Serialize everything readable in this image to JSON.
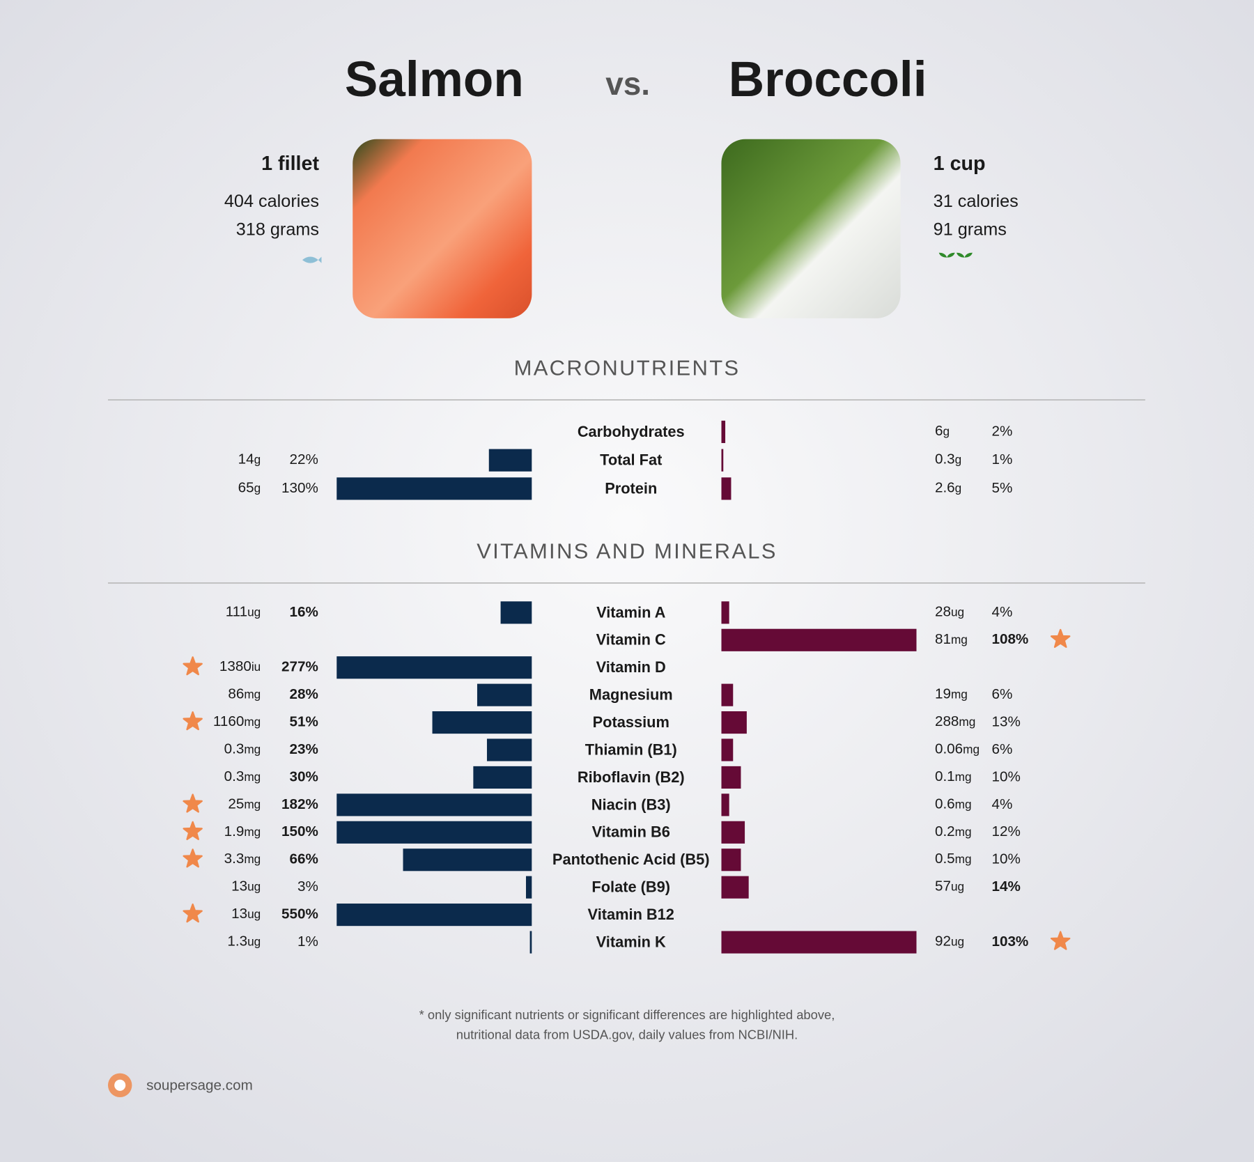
{
  "header": {
    "left": "Salmon",
    "vs": "vs.",
    "right": "Broccoli"
  },
  "colors": {
    "left": "#0b2a4c",
    "right": "#650a36",
    "star": "#f0884a"
  },
  "foods": [
    {
      "serving": "1 fillet",
      "calories": "404 calories",
      "grams": "318 grams"
    },
    {
      "serving": "1 cup",
      "calories": "31 calories",
      "grams": "91 grams"
    }
  ],
  "xlim": [
    0,
    100
  ],
  "sections": [
    {
      "title": "MACRONUTRIENTS",
      "rows": [
        {
          "nutrient": "Carbohydrates",
          "left": null,
          "right": {
            "amount": 6,
            "unit": "g",
            "pct": 2,
            "pct_label": "2%"
          }
        },
        {
          "nutrient": "Total Fat",
          "left": {
            "amount": 14,
            "unit": "g",
            "pct": 22,
            "pct_label": "22%"
          },
          "right": {
            "amount": 0.3,
            "unit": "g",
            "pct": 1,
            "pct_label": "1%"
          }
        },
        {
          "nutrient": "Protein",
          "left": {
            "amount": 65,
            "unit": "g",
            "pct": 130,
            "pct_label": "130%"
          },
          "right": {
            "amount": 2.6,
            "unit": "g",
            "pct": 5,
            "pct_label": "5%"
          }
        }
      ]
    },
    {
      "title": "VITAMINS AND MINERALS",
      "rows": [
        {
          "nutrient": "Vitamin A",
          "left": {
            "amount": 111,
            "unit": "ug",
            "pct": 16,
            "pct_label": "16%",
            "bold": true
          },
          "right": {
            "amount": 28,
            "unit": "ug",
            "pct": 4,
            "pct_label": "4%"
          }
        },
        {
          "nutrient": "Vitamin C",
          "left": null,
          "right": {
            "amount": 81,
            "unit": "mg",
            "pct": 108,
            "pct_label": "108%",
            "bold": true,
            "star": true
          }
        },
        {
          "nutrient": "Vitamin D",
          "left": {
            "amount": 1380,
            "unit": "iu",
            "pct": 277,
            "pct_label": "277%",
            "bold": true,
            "star": true
          },
          "right": null
        },
        {
          "nutrient": "Magnesium",
          "left": {
            "amount": 86,
            "unit": "mg",
            "pct": 28,
            "pct_label": "28%",
            "bold": true
          },
          "right": {
            "amount": 19,
            "unit": "mg",
            "pct": 6,
            "pct_label": "6%"
          }
        },
        {
          "nutrient": "Potassium",
          "left": {
            "amount": 1160,
            "unit": "mg",
            "pct": 51,
            "pct_label": "51%",
            "bold": true,
            "star": true
          },
          "right": {
            "amount": 288,
            "unit": "mg",
            "pct": 13,
            "pct_label": "13%"
          }
        },
        {
          "nutrient": "Thiamin (B1)",
          "left": {
            "amount": 0.3,
            "unit": "mg",
            "pct": 23,
            "pct_label": "23%",
            "bold": true
          },
          "right": {
            "amount": 0.06,
            "unit": "mg",
            "pct": 6,
            "pct_label": "6%"
          }
        },
        {
          "nutrient": "Riboflavin (B2)",
          "left": {
            "amount": 0.3,
            "unit": "mg",
            "pct": 30,
            "pct_label": "30%",
            "bold": true
          },
          "right": {
            "amount": 0.1,
            "unit": "mg",
            "pct": 10,
            "pct_label": "10%"
          }
        },
        {
          "nutrient": "Niacin (B3)",
          "left": {
            "amount": 25,
            "unit": "mg",
            "pct": 182,
            "pct_label": "182%",
            "bold": true,
            "star": true
          },
          "right": {
            "amount": 0.6,
            "unit": "mg",
            "pct": 4,
            "pct_label": "4%"
          }
        },
        {
          "nutrient": "Vitamin B6",
          "left": {
            "amount": 1.9,
            "unit": "mg",
            "pct": 150,
            "pct_label": "150%",
            "bold": true,
            "star": true
          },
          "right": {
            "amount": 0.2,
            "unit": "mg",
            "pct": 12,
            "pct_label": "12%"
          }
        },
        {
          "nutrient": "Pantothenic Acid (B5)",
          "left": {
            "amount": 3.3,
            "unit": "mg",
            "pct": 66,
            "pct_label": "66%",
            "bold": true,
            "star": true
          },
          "right": {
            "amount": 0.5,
            "unit": "mg",
            "pct": 10,
            "pct_label": "10%"
          }
        },
        {
          "nutrient": "Folate (B9)",
          "left": {
            "amount": 13,
            "unit": "ug",
            "pct": 3,
            "pct_label": "3%"
          },
          "right": {
            "amount": 57,
            "unit": "ug",
            "pct": 14,
            "pct_label": "14%",
            "bold": true
          }
        },
        {
          "nutrient": "Vitamin B12",
          "left": {
            "amount": 13,
            "unit": "ug",
            "pct": 550,
            "pct_label": "550%",
            "bold": true,
            "star": true
          },
          "right": null
        },
        {
          "nutrient": "Vitamin K",
          "left": {
            "amount": 1.3,
            "unit": "ug",
            "pct": 1,
            "pct_label": "1%"
          },
          "right": {
            "amount": 92,
            "unit": "ug",
            "pct": 103,
            "pct_label": "103%",
            "bold": true,
            "star": true
          }
        }
      ]
    }
  ],
  "footnote": [
    "* only significant nutrients or significant differences are highlighted above,",
    "nutritional data from USDA.gov, daily values from NCBI/NIH."
  ],
  "brand": "soupersage.com"
}
